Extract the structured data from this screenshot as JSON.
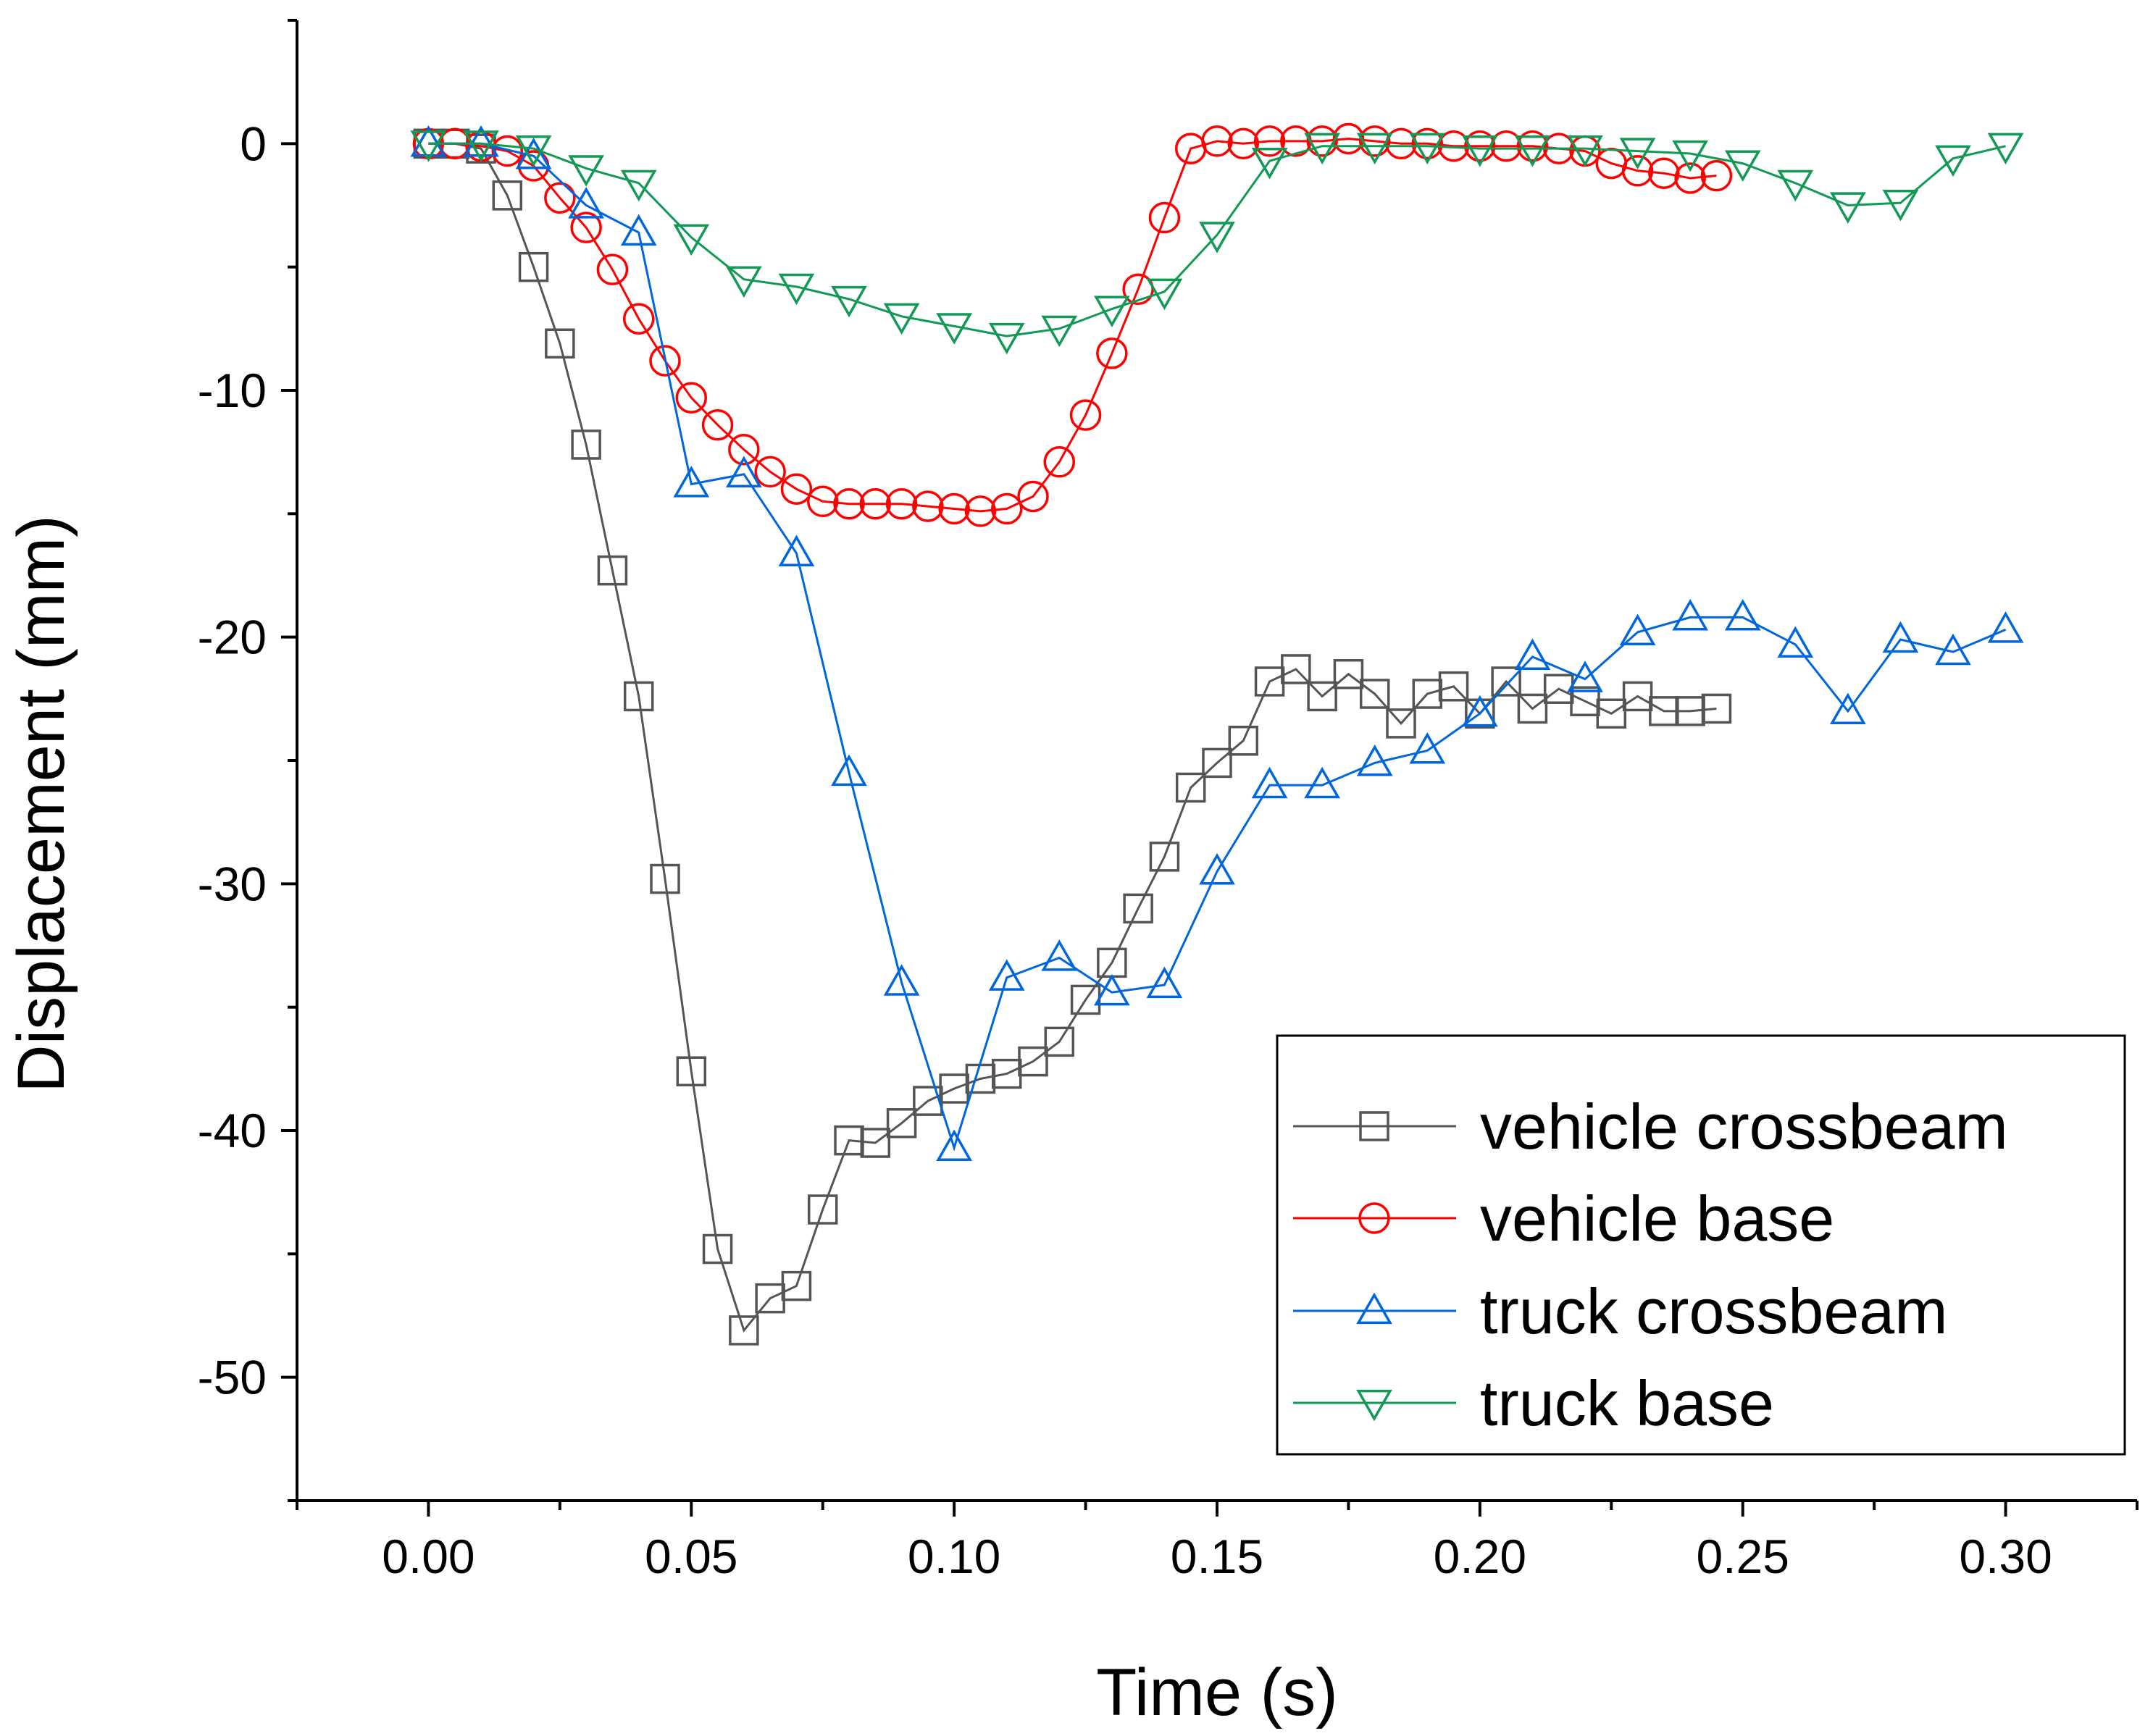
{
  "chart_data": {
    "type": "line",
    "title": "",
    "xlabel": "Time (s)",
    "ylabel": "Displacement (mm)",
    "xlim": [
      -0.025,
      0.325
    ],
    "ylim": [
      -55,
      5
    ],
    "xticks": [
      0.0,
      0.05,
      0.1,
      0.15,
      0.2,
      0.25,
      0.3
    ],
    "xtick_labels": [
      "0.00",
      "0.05",
      "0.10",
      "0.15",
      "0.20",
      "0.25",
      "0.30"
    ],
    "yticks": [
      0,
      -10,
      -20,
      -30,
      -40,
      -50
    ],
    "ytick_labels": [
      "0",
      "-10",
      "-20",
      "-30",
      "-40",
      "-50"
    ],
    "grid": false,
    "legend_position": "bottom-right",
    "series": [
      {
        "name": "vehicle crossbeam",
        "color": "#555555",
        "marker": "square",
        "x": [
          0,
          0.005,
          0.01,
          0.015,
          0.02,
          0.025,
          0.03,
          0.035,
          0.04,
          0.045,
          0.05,
          0.055,
          0.06,
          0.065,
          0.07,
          0.075,
          0.08,
          0.085,
          0.09,
          0.095,
          0.1,
          0.105,
          0.11,
          0.115,
          0.12,
          0.125,
          0.13,
          0.135,
          0.14,
          0.145,
          0.15,
          0.155,
          0.16,
          0.165,
          0.17,
          0.175,
          0.18,
          0.185,
          0.19,
          0.195,
          0.2,
          0.205,
          0.21,
          0.215,
          0.22,
          0.225,
          0.23,
          0.235,
          0.24,
          0.245
        ],
        "y": [
          0,
          0,
          -0.2,
          -2.1,
          -5.0,
          -8.1,
          -12.2,
          -17.3,
          -22.4,
          -29.8,
          -37.6,
          -44.8,
          -48.1,
          -46.8,
          -46.3,
          -43.2,
          -40.4,
          -40.5,
          -39.7,
          -38.8,
          -38.3,
          -37.9,
          -37.7,
          -37.2,
          -36.4,
          -34.7,
          -33.2,
          -31.0,
          -28.9,
          -26.1,
          -25.1,
          -24.2,
          -21.8,
          -21.3,
          -22.4,
          -21.5,
          -22.3,
          -23.5,
          -22.3,
          -22.0,
          -23.1,
          -21.8,
          -22.9,
          -22.1,
          -22.6,
          -23.1,
          -22.4,
          -23.0,
          -23.0,
          -22.9
        ]
      },
      {
        "name": "vehicle base",
        "color": "#ff0000",
        "marker": "circle",
        "x": [
          0,
          0.005,
          0.01,
          0.015,
          0.02,
          0.025,
          0.03,
          0.035,
          0.04,
          0.045,
          0.05,
          0.055,
          0.06,
          0.065,
          0.07,
          0.075,
          0.08,
          0.085,
          0.09,
          0.095,
          0.1,
          0.105,
          0.11,
          0.115,
          0.12,
          0.125,
          0.13,
          0.135,
          0.14,
          0.145,
          0.15,
          0.155,
          0.16,
          0.165,
          0.17,
          0.175,
          0.18,
          0.185,
          0.19,
          0.195,
          0.2,
          0.205,
          0.21,
          0.215,
          0.22,
          0.225,
          0.23,
          0.235,
          0.24,
          0.245
        ],
        "y": [
          0,
          0,
          -0.1,
          -0.3,
          -0.9,
          -2.2,
          -3.4,
          -5.1,
          -7.1,
          -8.8,
          -10.3,
          -11.4,
          -12.4,
          -13.3,
          -14.0,
          -14.5,
          -14.6,
          -14.6,
          -14.6,
          -14.7,
          -14.8,
          -14.9,
          -14.8,
          -14.3,
          -12.9,
          -11.0,
          -8.5,
          -5.9,
          -3.0,
          -0.2,
          0.1,
          0.0,
          0.1,
          0.1,
          0.1,
          0.2,
          0.1,
          0.0,
          0.0,
          -0.1,
          -0.1,
          -0.1,
          -0.1,
          -0.2,
          -0.3,
          -0.8,
          -1.1,
          -1.2,
          -1.4,
          -1.3
        ]
      },
      {
        "name": "truck crossbeam",
        "color": "#0066dd",
        "marker": "triangle-up",
        "x": [
          0,
          0.01,
          0.02,
          0.03,
          0.04,
          0.05,
          0.06,
          0.07,
          0.08,
          0.09,
          0.1,
          0.11,
          0.12,
          0.13,
          0.14,
          0.15,
          0.16,
          0.17,
          0.18,
          0.19,
          0.2,
          0.21,
          0.22,
          0.23,
          0.24,
          0.25,
          0.26,
          0.27,
          0.28,
          0.29,
          0.3
        ],
        "y": [
          0,
          0,
          -0.5,
          -2.5,
          -3.6,
          -13.8,
          -13.4,
          -16.6,
          -25.5,
          -34.0,
          -40.7,
          -33.8,
          -33.0,
          -34.4,
          -34.1,
          -29.5,
          -26.0,
          -26.0,
          -25.1,
          -24.6,
          -23.1,
          -20.8,
          -21.7,
          -19.8,
          -19.2,
          -19.2,
          -20.3,
          -23.0,
          -20.1,
          -20.6,
          -19.7
        ]
      },
      {
        "name": "truck base",
        "color": "#119955",
        "marker": "triangle-down",
        "x": [
          0,
          0.01,
          0.02,
          0.03,
          0.04,
          0.05,
          0.06,
          0.07,
          0.08,
          0.09,
          0.1,
          0.11,
          0.12,
          0.13,
          0.14,
          0.15,
          0.16,
          0.17,
          0.18,
          0.19,
          0.2,
          0.21,
          0.22,
          0.23,
          0.24,
          0.25,
          0.26,
          0.27,
          0.28,
          0.29,
          0.3
        ],
        "y": [
          0,
          0,
          -0.2,
          -1.0,
          -1.6,
          -3.8,
          -5.5,
          -5.8,
          -6.3,
          -7.0,
          -7.4,
          -7.8,
          -7.5,
          -6.7,
          -6.0,
          -3.7,
          -0.7,
          -0.1,
          -0.1,
          -0.1,
          -0.2,
          -0.2,
          -0.2,
          -0.3,
          -0.4,
          -0.8,
          -1.6,
          -2.5,
          -2.4,
          -0.6,
          -0.1
        ]
      }
    ]
  }
}
